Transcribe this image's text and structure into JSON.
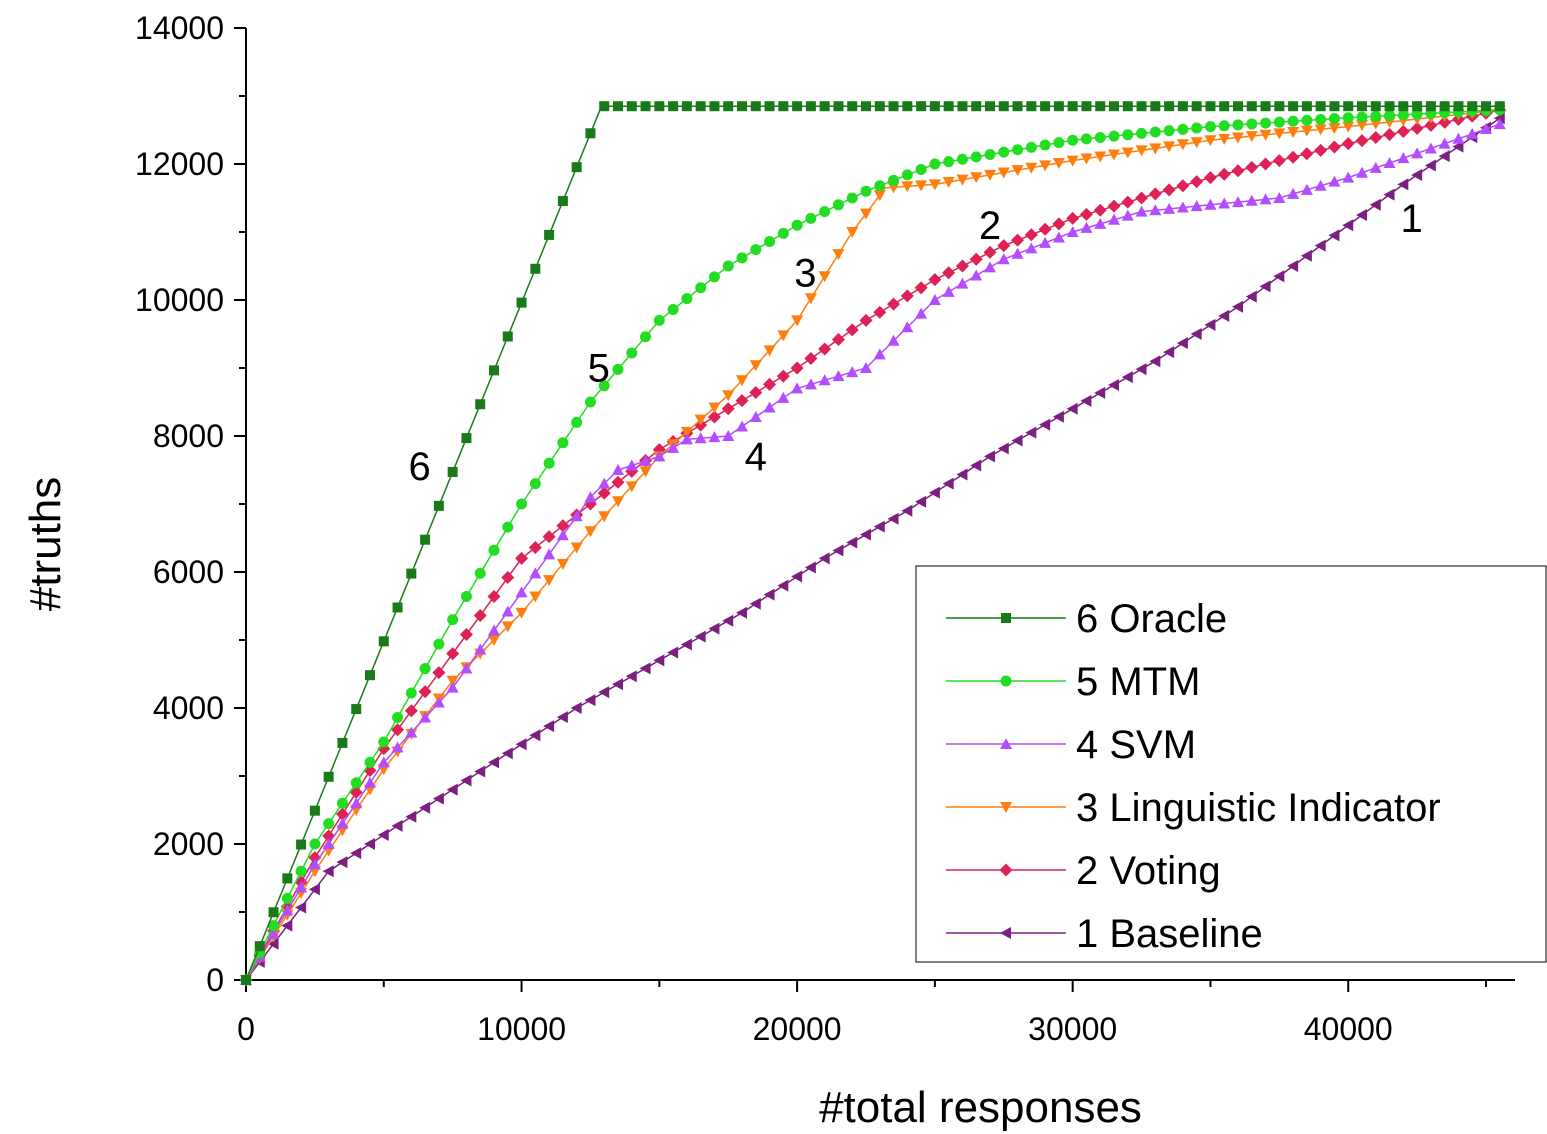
{
  "chart_data": {
    "type": "line",
    "title": "",
    "xlabel": "#total responses",
    "ylabel": "#truths",
    "xlim": [
      0,
      47000
    ],
    "ylim": [
      0,
      14000
    ],
    "x_ticks": [
      "0",
      "10000",
      "20000",
      "30000",
      "40000"
    ],
    "y_ticks": [
      "0",
      "2000",
      "4000",
      "6000",
      "8000",
      "10000",
      "12000",
      "14000"
    ],
    "grid": false,
    "legend_position": "bottom-right",
    "series": [
      {
        "name": "6 Oracle",
        "label": "6",
        "color": "#1a7a1a",
        "marker": "square",
        "points": [
          [
            0,
            0
          ],
          [
            12900,
            12850
          ],
          [
            45600,
            12850
          ]
        ],
        "label_at": [
          6300,
          7350
        ]
      },
      {
        "name": "5 MTM",
        "label": "5",
        "color": "#22dd22",
        "marker": "circle",
        "points": [
          [
            0,
            0
          ],
          [
            2500,
            2000
          ],
          [
            5000,
            3500
          ],
          [
            7500,
            5300
          ],
          [
            10000,
            7000
          ],
          [
            12500,
            8500
          ],
          [
            15000,
            9700
          ],
          [
            17500,
            10500
          ],
          [
            20000,
            11100
          ],
          [
            22500,
            11600
          ],
          [
            25000,
            12000
          ],
          [
            30000,
            12350
          ],
          [
            35000,
            12550
          ],
          [
            40000,
            12680
          ],
          [
            45600,
            12800
          ]
        ],
        "label_at": [
          12800,
          8800
        ]
      },
      {
        "name": "4 SVM",
        "label": "4",
        "color": "#b34dff",
        "marker": "triangle-up",
        "points": [
          [
            0,
            0
          ],
          [
            2500,
            1700
          ],
          [
            5000,
            3200
          ],
          [
            7500,
            4300
          ],
          [
            10000,
            5700
          ],
          [
            12500,
            7100
          ],
          [
            13500,
            7500
          ],
          [
            15000,
            7700
          ],
          [
            16000,
            7950
          ],
          [
            17500,
            8000
          ],
          [
            20000,
            8700
          ],
          [
            22500,
            9000
          ],
          [
            25000,
            10000
          ],
          [
            27500,
            10600
          ],
          [
            30000,
            11000
          ],
          [
            32500,
            11300
          ],
          [
            35000,
            11400
          ],
          [
            37500,
            11500
          ],
          [
            40000,
            11800
          ],
          [
            45600,
            12600
          ]
        ],
        "label_at": [
          18500,
          7500
        ]
      },
      {
        "name": "3 Linguistic Indicator",
        "label": "3",
        "color": "#ff7f0e",
        "marker": "triangle-down",
        "points": [
          [
            0,
            0
          ],
          [
            2500,
            1600
          ],
          [
            5000,
            3100
          ],
          [
            7500,
            4400
          ],
          [
            10000,
            5400
          ],
          [
            12500,
            6600
          ],
          [
            15000,
            7700
          ],
          [
            17500,
            8600
          ],
          [
            20000,
            9700
          ],
          [
            22000,
            11000
          ],
          [
            23200,
            11650
          ],
          [
            25000,
            11700
          ],
          [
            30000,
            12050
          ],
          [
            35000,
            12350
          ],
          [
            40000,
            12550
          ],
          [
            45600,
            12800
          ]
        ],
        "label_at": [
          20300,
          10200
        ]
      },
      {
        "name": "2 Voting",
        "label": "2",
        "color": "#dd2255",
        "marker": "diamond",
        "points": [
          [
            0,
            0
          ],
          [
            2500,
            1800
          ],
          [
            5000,
            3400
          ],
          [
            7500,
            4800
          ],
          [
            10000,
            6200
          ],
          [
            12500,
            7000
          ],
          [
            15000,
            7800
          ],
          [
            17500,
            8400
          ],
          [
            20000,
            9000
          ],
          [
            22500,
            9700
          ],
          [
            25000,
            10300
          ],
          [
            27500,
            10800
          ],
          [
            30000,
            11200
          ],
          [
            35000,
            11800
          ],
          [
            40000,
            12300
          ],
          [
            45600,
            12800
          ]
        ],
        "label_at": [
          27000,
          10900
        ]
      },
      {
        "name": "1 Baseline",
        "label": "1",
        "color": "#7b2080",
        "marker": "triangle-left",
        "points": [
          [
            0,
            0
          ],
          [
            3000,
            1600
          ],
          [
            6000,
            2400
          ],
          [
            9000,
            3200
          ],
          [
            12000,
            4000
          ],
          [
            15000,
            4700
          ],
          [
            18000,
            5400
          ],
          [
            21000,
            6200
          ],
          [
            24000,
            6900
          ],
          [
            27000,
            7700
          ],
          [
            30000,
            8400
          ],
          [
            33000,
            9100
          ],
          [
            36000,
            9900
          ],
          [
            39000,
            10800
          ],
          [
            42000,
            11700
          ],
          [
            45600,
            12700
          ]
        ],
        "label_at": [
          42300,
          11000
        ]
      }
    ]
  }
}
